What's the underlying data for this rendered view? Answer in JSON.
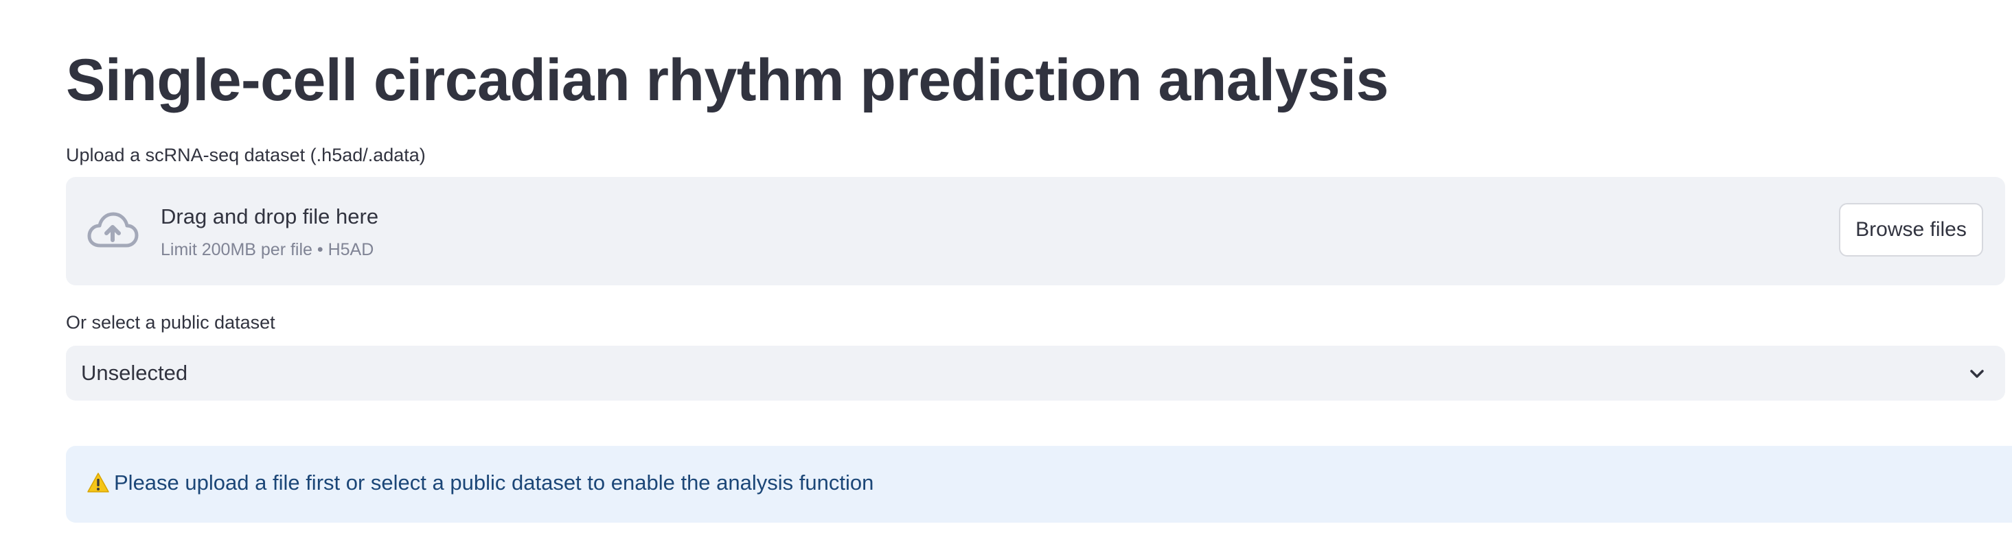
{
  "page": {
    "title": "Single-cell circadian rhythm prediction analysis"
  },
  "uploader": {
    "label": "Upload a scRNA-seq dataset (.h5ad/.adata)",
    "drop_title": "Drag and drop file here",
    "drop_subtitle": "Limit 200MB per file • H5AD",
    "browse_label": "Browse files",
    "icon": "cloud-upload-icon"
  },
  "dataset_select": {
    "label": "Or select a public dataset",
    "selected_value": "Unselected",
    "icon": "chevron-down-icon"
  },
  "alert": {
    "icon": "warning-icon",
    "message": "Please upload a file first or select a public dataset to enable the analysis function"
  },
  "colors": {
    "text_primary": "#31333f",
    "text_muted": "#808495",
    "panel_bg": "#f0f2f6",
    "alert_bg": "#eaf2fc",
    "alert_text": "#1b4677",
    "icon_gray": "#a3a8b8",
    "warning_yellow": "#f5c518"
  }
}
